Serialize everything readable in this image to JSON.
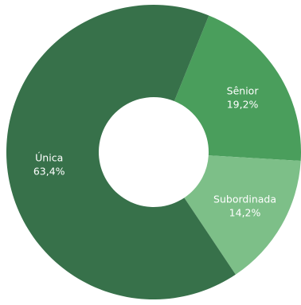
{
  "chart_data": {
    "type": "pie",
    "donut": true,
    "categories": [
      "Sênior",
      "Subordinada",
      "Única"
    ],
    "values": [
      19.2,
      14.2,
      63.4
    ],
    "value_labels": [
      "19,2%",
      "14,2%",
      "63,4%"
    ],
    "colors": [
      "#4a9e5c",
      "#7dbf88",
      "#37714a"
    ],
    "title": "",
    "legend": "none",
    "label_position": "inside"
  }
}
